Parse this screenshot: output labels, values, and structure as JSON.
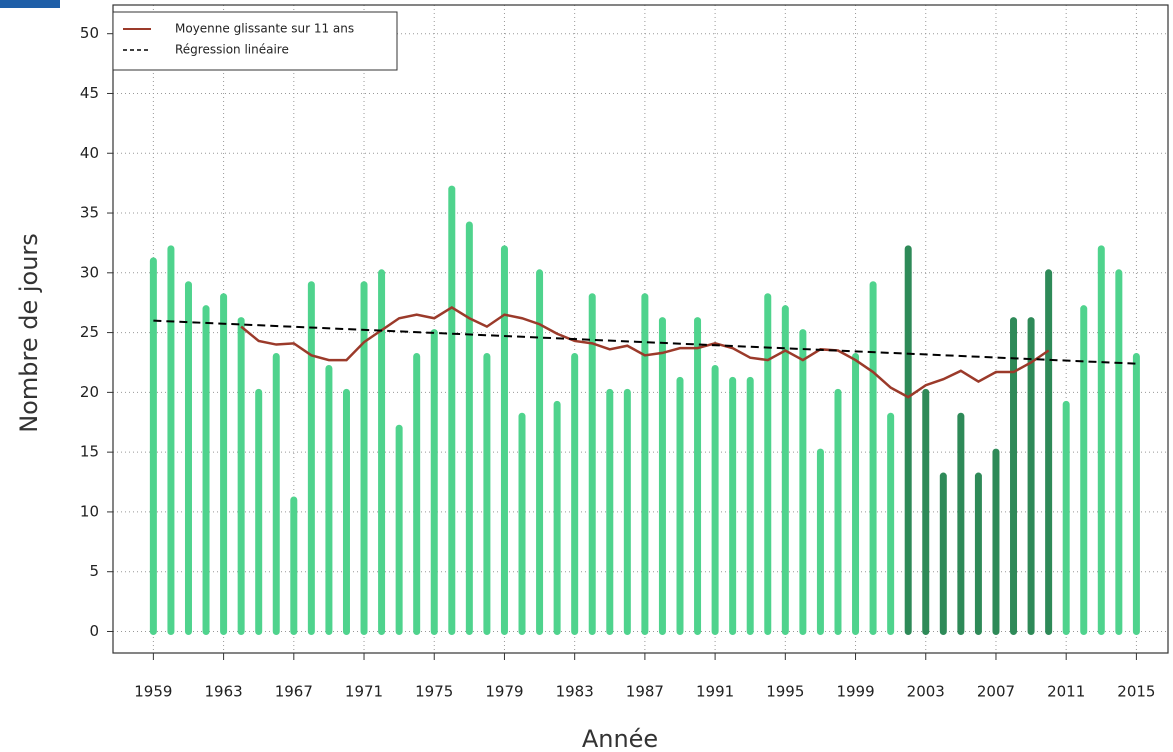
{
  "chart_data": {
    "type": "bar",
    "x_label": "Année",
    "y_label": "Nombre de jours",
    "x": [
      1959,
      1960,
      1961,
      1962,
      1963,
      1964,
      1965,
      1966,
      1967,
      1968,
      1969,
      1970,
      1971,
      1972,
      1973,
      1974,
      1975,
      1976,
      1977,
      1978,
      1979,
      1980,
      1981,
      1982,
      1983,
      1984,
      1985,
      1986,
      1987,
      1988,
      1989,
      1990,
      1991,
      1992,
      1993,
      1994,
      1995,
      1996,
      1997,
      1998,
      1999,
      2000,
      2001,
      2002,
      2003,
      2004,
      2005,
      2006,
      2007,
      2008,
      2009,
      2010,
      2011,
      2012,
      2013,
      2014,
      2015
    ],
    "series": [
      {
        "values": [
          31,
          32,
          29,
          27,
          28,
          26,
          20,
          23,
          11,
          29,
          22,
          20,
          29,
          30,
          17,
          23,
          25,
          37,
          34,
          23,
          32,
          18,
          30,
          19,
          23,
          28,
          20,
          20,
          28,
          26,
          21,
          26,
          22,
          21,
          21,
          28,
          27,
          25,
          15,
          20,
          23,
          29,
          18,
          32,
          20,
          13,
          18,
          13,
          15,
          26,
          26,
          30,
          19,
          27,
          32,
          30,
          23
        ],
        "colors": [
          "#4fd38d",
          "#4fd38d",
          "#4fd38d",
          "#4fd38d",
          "#4fd38d",
          "#4fd38d",
          "#4fd38d",
          "#4fd38d",
          "#4fd38d",
          "#4fd38d",
          "#4fd38d",
          "#4fd38d",
          "#4fd38d",
          "#4fd38d",
          "#4fd38d",
          "#4fd38d",
          "#4fd38d",
          "#4fd38d",
          "#4fd38d",
          "#4fd38d",
          "#4fd38d",
          "#4fd38d",
          "#4fd38d",
          "#4fd38d",
          "#4fd38d",
          "#4fd38d",
          "#4fd38d",
          "#4fd38d",
          "#4fd38d",
          "#4fd38d",
          "#4fd38d",
          "#4fd38d",
          "#4fd38d",
          "#4fd38d",
          "#4fd38d",
          "#4fd38d",
          "#4fd38d",
          "#4fd38d",
          "#4fd38d",
          "#4fd38d",
          "#4fd38d",
          "#4fd38d",
          "#4fd38d",
          "#2e8a58",
          "#2e8a58",
          "#2e8a58",
          "#2e8a58",
          "#2e8a58",
          "#2e8a58",
          "#2e8a58",
          "#2e8a58",
          "#2e8a58",
          "#4fd38d",
          "#4fd38d",
          "#4fd38d",
          "#4fd38d",
          "#4fd38d"
        ]
      },
      {
        "name": "Moyenne glissante sur 11 ans",
        "type": "line",
        "color": "#9b3a2a",
        "values": [
          null,
          null,
          null,
          null,
          null,
          25.5,
          24.3,
          24.0,
          24.1,
          23.1,
          22.7,
          22.7,
          24.2,
          25.2,
          26.2,
          26.5,
          26.2,
          27.1,
          26.2,
          25.5,
          26.5,
          26.2,
          25.7,
          24.9,
          24.3,
          24.1,
          23.6,
          23.9,
          23.1,
          23.3,
          23.7,
          23.7,
          24.1,
          23.7,
          22.9,
          22.7,
          23.5,
          22.7,
          23.6,
          23.5,
          22.7,
          21.7,
          20.4,
          19.6,
          20.6,
          21.1,
          21.8,
          20.9,
          21.7,
          21.7,
          22.5,
          23.5,
          null,
          null,
          null,
          null,
          null
        ]
      },
      {
        "name": "Régression linéaire",
        "type": "dashed",
        "color": "#000000",
        "x": [
          1959,
          2015
        ],
        "values": [
          26.0,
          22.4
        ]
      }
    ],
    "xlim": [
      1956.7,
      2016.8
    ],
    "ylim": [
      -1.8,
      52.4
    ],
    "xticks": [
      1959,
      1963,
      1967,
      1971,
      1975,
      1979,
      1983,
      1987,
      1991,
      1995,
      1999,
      2003,
      2007,
      2011,
      2015
    ],
    "yticks": [
      0,
      5,
      10,
      15,
      20,
      25,
      30,
      35,
      40,
      45,
      50
    ],
    "grid": true,
    "legend": "top-left"
  }
}
